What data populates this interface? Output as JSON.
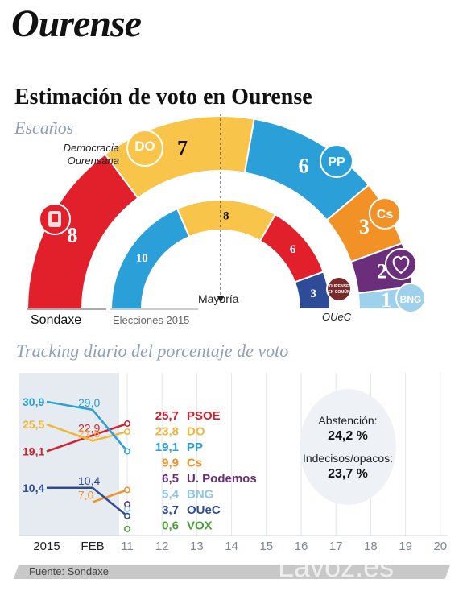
{
  "header": {
    "city": "Ourense",
    "title": "Estimación de voto en Ourense"
  },
  "seats": {
    "label": "Escaños",
    "majority_label": "Mayoría",
    "left_caption": "Sondaxe",
    "right_caption": "Elecciones 2015",
    "do_name": "Democracia Ourensana",
    "do_name_line1": "Democracia",
    "do_name_line2": "Ourensana",
    "ouec_name": "OUeC",
    "logos": {
      "psoe": "rose-fist-icon",
      "do": "DO",
      "pp": "PP",
      "cs": "Cs",
      "podemos": "heart-icon",
      "bng": "BNG",
      "ouec": "OURENSE EN COMÚN"
    },
    "colors": {
      "psoe": "#e2202b",
      "do": "#f8c44a",
      "pp": "#2a9fd8",
      "cs": "#f29126",
      "podemos": "#6a2e7b",
      "bng": "#9fd1ec",
      "ouec": "#2e4b97"
    }
  },
  "tracking": {
    "label": "Tracking diario del porcentaje de voto",
    "x_labels": [
      "2015",
      "FEB",
      "11",
      "12",
      "13",
      "14",
      "15",
      "16",
      "17",
      "18",
      "19",
      "20"
    ],
    "abstention_label": "Abstención:",
    "abstention_value": "24,2 %",
    "undecided_label": "Indecisos/opacos:",
    "undecided_value": "23,7 %",
    "source": "Fuente: Sondaxe",
    "watermark": "Lavoz.es"
  },
  "chart_data": [
    {
      "type": "pie",
      "title": "Escaños",
      "series": [
        {
          "name": "Sondaxe",
          "categories": [
            "PSOE",
            "DO",
            "PP",
            "Cs",
            "Podemos",
            "BNG"
          ],
          "values": [
            8,
            7,
            6,
            3,
            2,
            1
          ]
        },
        {
          "name": "Elecciones 2015",
          "categories": [
            "PP",
            "DO",
            "PSOE",
            "OUeC"
          ],
          "values": [
            10,
            8,
            6,
            3
          ]
        }
      ]
    },
    {
      "type": "line",
      "title": "Tracking diario del porcentaje de voto",
      "categories": [
        "2015",
        "FEB",
        "11"
      ],
      "series": [
        {
          "name": "PSOE",
          "color": "#d4202a",
          "values": [
            19.1,
            22.9,
            25.7
          ],
          "labels": [
            "19,1",
            "22,9",
            "25,7"
          ]
        },
        {
          "name": "DO",
          "color": "#f0b63a",
          "values": [
            25.5,
            21.6,
            23.8
          ],
          "labels": [
            "25,5",
            "21,6",
            "23,8"
          ]
        },
        {
          "name": "PP",
          "color": "#2a9fd8",
          "values": [
            30.9,
            29.0,
            19.1
          ],
          "labels": [
            "30,9",
            "29,0",
            "19,1"
          ]
        },
        {
          "name": "Cs",
          "color": "#f29126",
          "values": [
            null,
            7.0,
            9.9
          ],
          "labels": [
            "",
            "7,0",
            "9,9"
          ]
        },
        {
          "name": "U. Podemos",
          "color": "#6a2e7b",
          "values": [
            null,
            null,
            6.5
          ],
          "labels": [
            "",
            "",
            "6,5"
          ]
        },
        {
          "name": "BNG",
          "color": "#8ec7e6",
          "values": [
            null,
            null,
            5.4
          ],
          "labels": [
            "",
            "",
            "5,4"
          ]
        },
        {
          "name": "OUeC",
          "color": "#2e4b97",
          "values": [
            10.4,
            10.4,
            3.7
          ],
          "labels": [
            "10,4",
            "10,4",
            "3,7"
          ]
        },
        {
          "name": "VOX",
          "color": "#4aa13a",
          "values": [
            null,
            null,
            0.6
          ],
          "labels": [
            "",
            "",
            "0,6"
          ]
        }
      ]
    }
  ]
}
